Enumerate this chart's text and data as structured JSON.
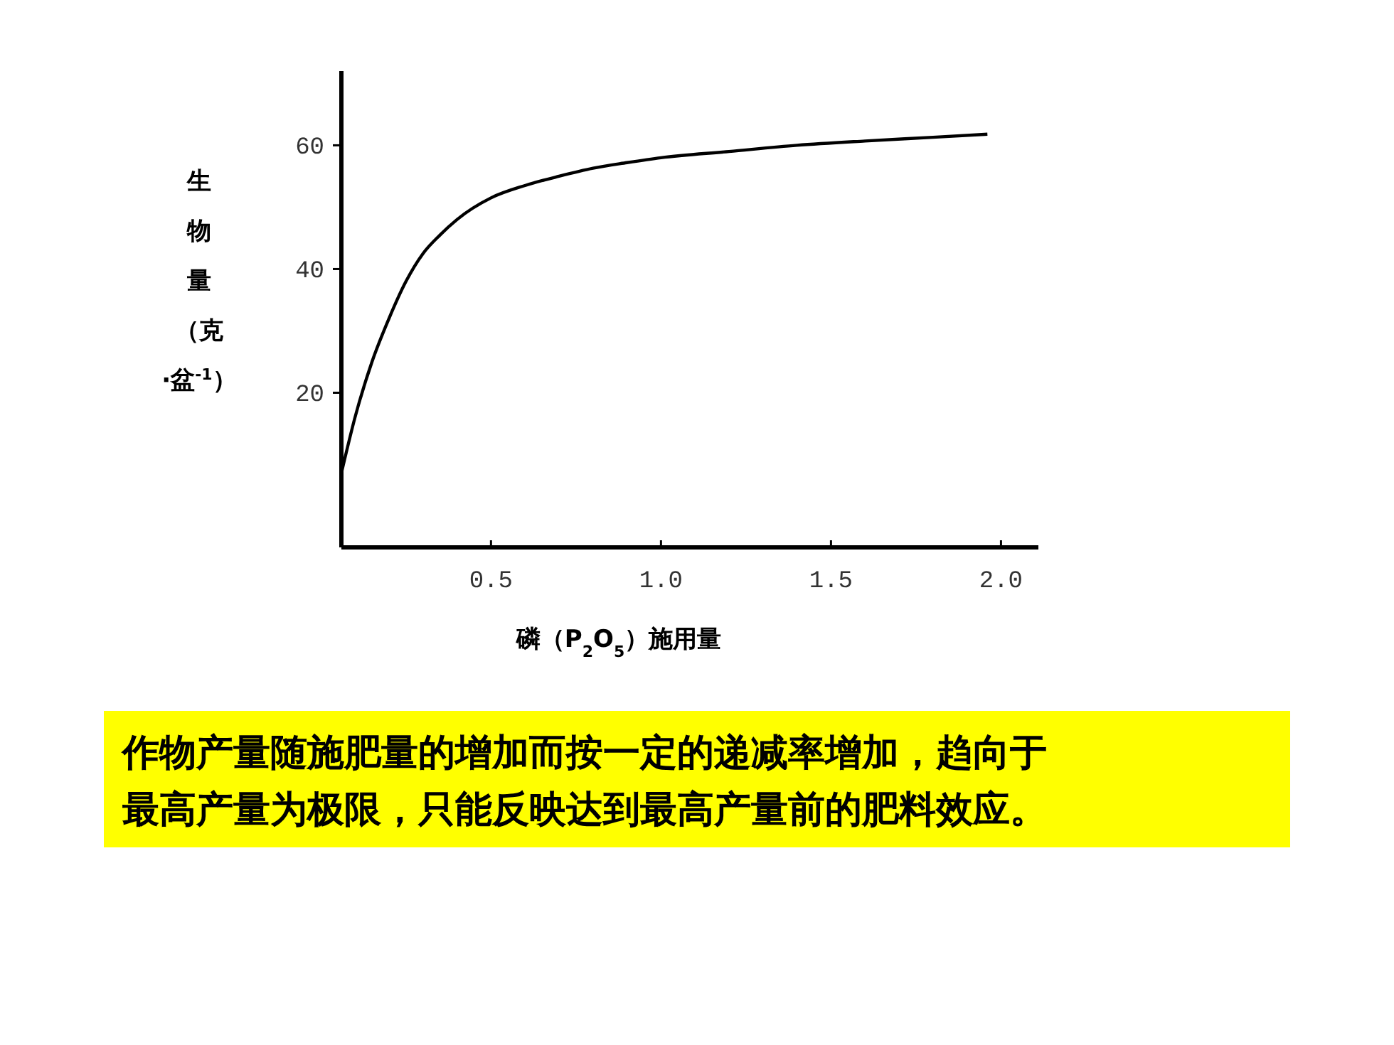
{
  "chart_data": {
    "type": "line",
    "xlabel": "磷（P$_{2}$O$_{5}$）施用量",
    "ylabel": "生物量（克·盆$^{-1}$）",
    "x": [
      0.06,
      0.1,
      0.15,
      0.2,
      0.25,
      0.3,
      0.35,
      0.4,
      0.5,
      0.6,
      0.7,
      0.8,
      0.9,
      1.0,
      1.2,
      1.4,
      1.6,
      1.8,
      1.96
    ],
    "series": [
      {
        "color": "#000000",
        "values": [
          7,
          16,
          25,
          32,
          38,
          42.5,
          45.5,
          48,
          51.5,
          53.5,
          55,
          56.3,
          57.2,
          58,
          59,
          60,
          60.7,
          61.3,
          61.8
        ]
      }
    ],
    "xlim": [
      0.06,
      2.11
    ],
    "ylim": [
      -5,
      72
    ],
    "xticks": [
      {
        "value": 0.5,
        "label": "0.5"
      },
      {
        "value": 1.0,
        "label": "1.0"
      },
      {
        "value": 1.5,
        "label": "1.5"
      },
      {
        "value": 2.0,
        "label": "2.0"
      }
    ],
    "yticks": [
      20,
      40,
      60
    ],
    "grid": false,
    "marker": "none",
    "line_style": "solid",
    "annotations": [
      "作物产量随施肥量的增加而按一定的递减率增加，趋向于最高产量为极限，只能反映达到最高产量前的肥料效应。"
    ]
  }
}
